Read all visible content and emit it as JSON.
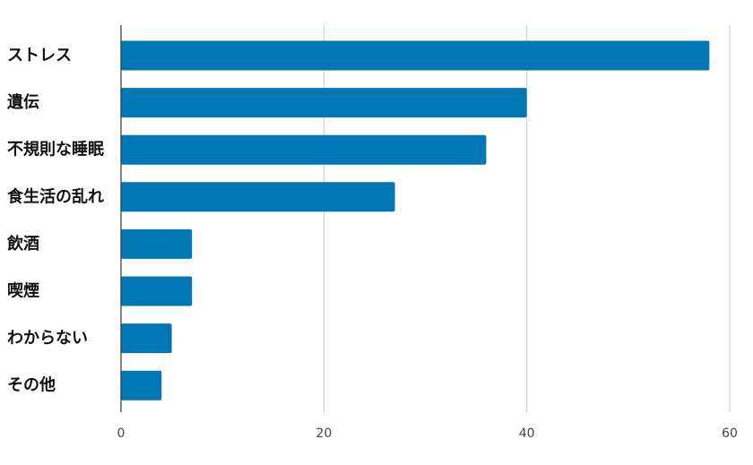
{
  "chart_data": {
    "type": "bar",
    "orientation": "horizontal",
    "categories": [
      "ストレス",
      "遺伝",
      "不規則な睡眠",
      "食生活の乱れ",
      "飲酒",
      "喫煙",
      "わからない",
      "その他"
    ],
    "values": [
      58,
      40,
      36,
      27,
      7,
      7,
      5,
      4
    ],
    "xlim": [
      0,
      60
    ],
    "xticks": [
      "0",
      "20",
      "40",
      "60"
    ],
    "grid": true,
    "bar_color": "#0177b5",
    "title": "",
    "xlabel": "",
    "ylabel": ""
  }
}
